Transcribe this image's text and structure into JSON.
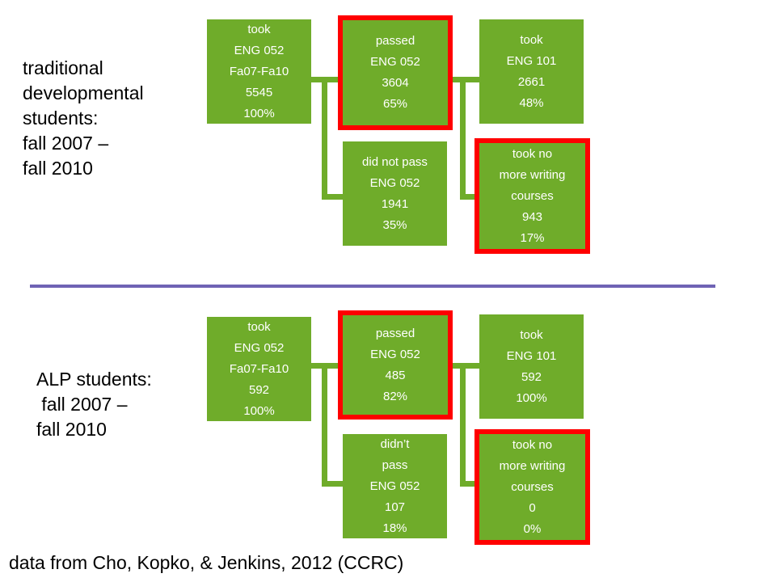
{
  "colors": {
    "box_fill": "#6fac2a",
    "highlight": "#ff0000",
    "divider": "#6f63b4",
    "box_text": "#ffffff"
  },
  "top": {
    "label": "traditional\ndevelopmental\nstudents:\nfall 2007 –\nfall 2010",
    "took_052": [
      "took",
      "ENG 052",
      "Fa07-Fa10",
      "5545",
      "100%"
    ],
    "passed_052": [
      "passed",
      "ENG 052",
      "3604",
      "65%"
    ],
    "did_not_pass": [
      "did not pass",
      "ENG 052",
      "1941",
      "35%"
    ],
    "took_101": [
      "took",
      "ENG 101",
      "2661",
      "48%"
    ],
    "no_more": [
      "took no",
      "more writing",
      "courses",
      "943",
      "17%"
    ]
  },
  "bottom": {
    "label": "ALP students:\n fall 2007 –\nfall 2010",
    "took_052": [
      "took",
      "ENG 052",
      "Fa07-Fa10",
      "592",
      "100%"
    ],
    "passed_052": [
      "passed",
      "ENG 052",
      "485",
      "82%"
    ],
    "did_not_pass": [
      "didn’t",
      "pass",
      "ENG 052",
      "107",
      "18%"
    ],
    "took_101": [
      "took",
      "ENG 101",
      "592",
      "100%"
    ],
    "no_more": [
      "took no",
      "more writing",
      "courses",
      "0",
      "0%"
    ]
  },
  "footnote": "data from Cho, Kopko, & Jenkins, 2012 (CCRC)"
}
